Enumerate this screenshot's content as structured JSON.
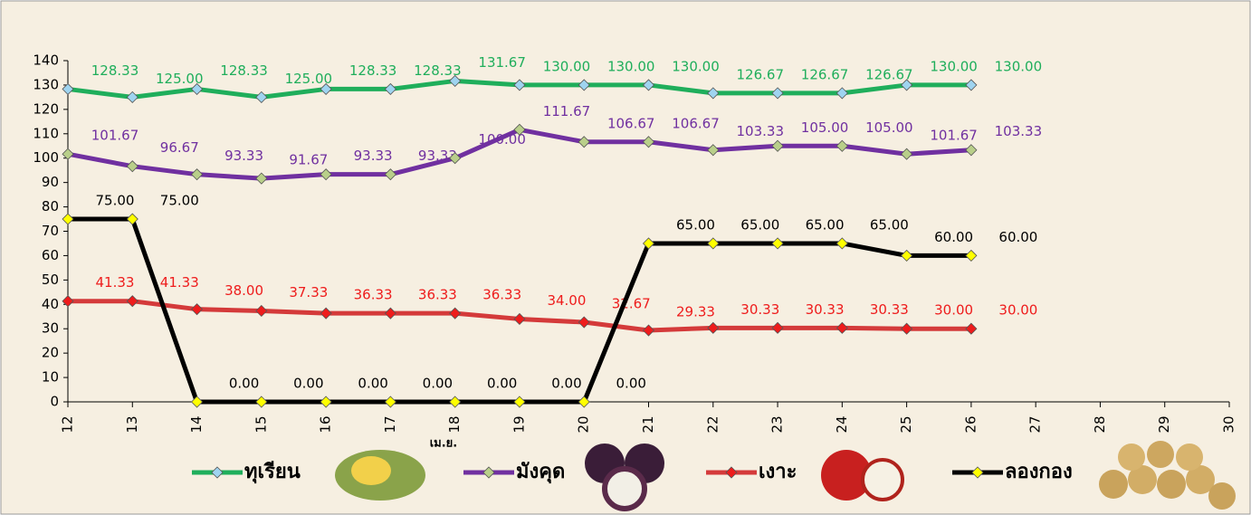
{
  "chart_data": {
    "type": "line",
    "xlabel": "เม.ย.",
    "categories": [
      "12",
      "13",
      "14",
      "15",
      "16",
      "17",
      "18",
      "19",
      "20",
      "21",
      "22",
      "23",
      "24",
      "25",
      "26",
      "27",
      "28",
      "29",
      "30"
    ],
    "ylim": [
      0,
      140
    ],
    "yticks": [
      0,
      10,
      20,
      30,
      40,
      50,
      60,
      70,
      80,
      90,
      100,
      110,
      120,
      130,
      140
    ],
    "legend": "bottom",
    "series": [
      {
        "name": "ทุเรียน",
        "color": "#1fae5b",
        "marker_color": "#9fd4f0",
        "values": [
          128.33,
          125,
          128.33,
          125,
          128.33,
          128.33,
          131.67,
          130,
          130,
          130,
          126.67,
          126.67,
          126.67,
          130,
          130,
          null,
          null,
          null,
          null
        ],
        "value_labels": [
          "128.33",
          "125.00",
          "128.33",
          "125.00",
          "128.33",
          "128.33",
          "131.67",
          "130.00",
          "130.00",
          "130.00",
          "126.67",
          "126.67",
          "126.67",
          "130.00",
          "130.00",
          null,
          null,
          null,
          null
        ]
      },
      {
        "name": "มังคุด",
        "color": "#7030a0",
        "marker_color": "#b9cf8a",
        "values": [
          101.67,
          96.67,
          93.33,
          91.67,
          93.33,
          93.33,
          100,
          111.67,
          106.67,
          106.67,
          103.33,
          105,
          105,
          101.67,
          103.33,
          null,
          null,
          null,
          null
        ],
        "value_labels": [
          "101.67",
          "96.67",
          "93.33",
          "91.67",
          "93.33",
          "93.33",
          "100.00",
          "111.67",
          "106.67",
          "106.67",
          "103.33",
          "105.00",
          "105.00",
          "101.67",
          "103.33",
          null,
          null,
          null,
          null
        ]
      },
      {
        "name": "เงาะ",
        "color": "#d43a3a",
        "marker_color": "#ee1c1c",
        "label_color": "#ee1c1c",
        "values": [
          41.33,
          41.33,
          38,
          37.33,
          36.33,
          36.33,
          36.33,
          34,
          32.67,
          29.33,
          30.33,
          30.33,
          30.33,
          30,
          30,
          null,
          null,
          null,
          null
        ],
        "value_labels": [
          "41.33",
          "41.33",
          "38.00",
          "37.33",
          "36.33",
          "36.33",
          "36.33",
          "34.00",
          "32.67",
          "29.33",
          "30.33",
          "30.33",
          "30.33",
          "30.00",
          "30.00",
          null,
          null,
          null,
          null
        ]
      },
      {
        "name": "ลองกอง",
        "color": "#000000",
        "marker_color": "#ffff00",
        "values": [
          75,
          75,
          0,
          0,
          0,
          0,
          0,
          0,
          0,
          65,
          65,
          65,
          65,
          60,
          60,
          null,
          null,
          null,
          null
        ],
        "value_labels": [
          "75.00",
          "75.00",
          "0.00",
          "0.00",
          "0.00",
          "0.00",
          "0.00",
          "0.00",
          "0.00",
          "65.00",
          "65.00",
          "65.00",
          "65.00",
          "60.00",
          "60.00",
          null,
          null,
          null,
          null
        ]
      }
    ]
  }
}
